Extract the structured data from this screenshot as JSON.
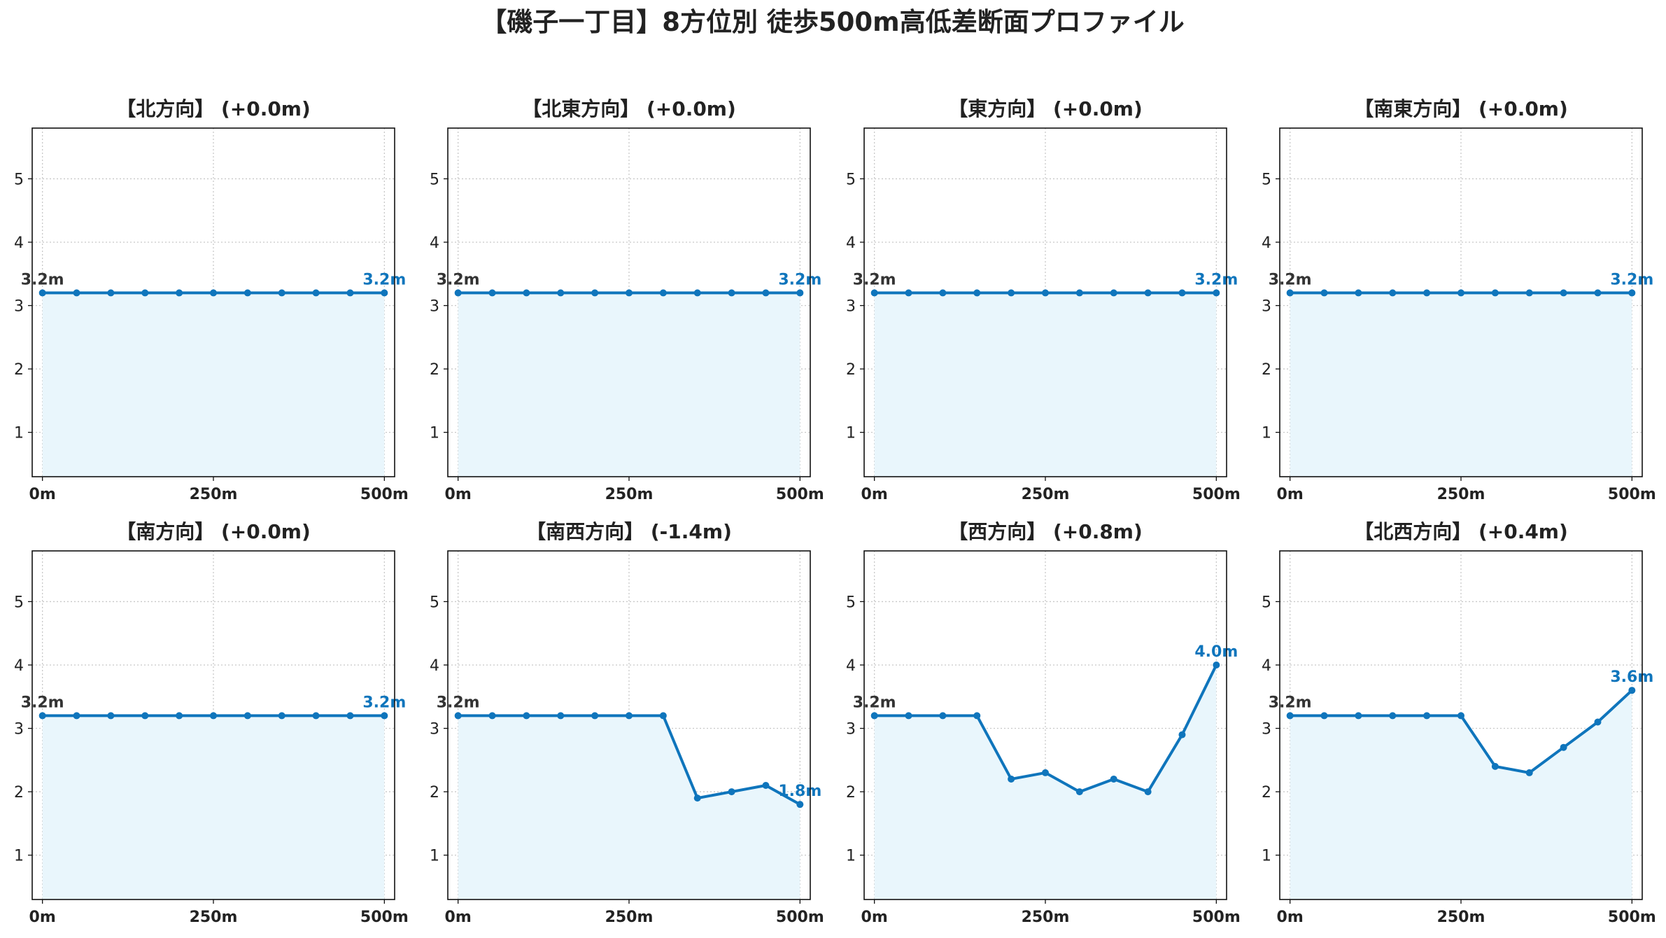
{
  "title": "【磯子一丁目】8方位別 徒歩500m高低差断面プロファイル",
  "colors": {
    "line": "#0f75bc",
    "fill": "#e9f6fc",
    "grid": "#c8c8c8"
  },
  "chart_data": [
    {
      "type": "area",
      "title": "【北方向】 (+0.0m)",
      "x": [
        0,
        50,
        100,
        150,
        200,
        250,
        300,
        350,
        400,
        450,
        500
      ],
      "values": [
        3.2,
        3.2,
        3.2,
        3.2,
        3.2,
        3.2,
        3.2,
        3.2,
        3.2,
        3.2,
        3.2
      ],
      "start_label": "3.2m",
      "end_label": "3.2m",
      "xticks": [
        "0m",
        "250m",
        "500m"
      ],
      "xtick_values": [
        0,
        250,
        500
      ],
      "yticks": [
        1,
        2,
        3,
        4,
        5
      ],
      "xlim": [
        -15,
        515
      ],
      "ylim": [
        0.3,
        5.8
      ],
      "grid": true
    },
    {
      "type": "area",
      "title": "【北東方向】 (+0.0m)",
      "x": [
        0,
        50,
        100,
        150,
        200,
        250,
        300,
        350,
        400,
        450,
        500
      ],
      "values": [
        3.2,
        3.2,
        3.2,
        3.2,
        3.2,
        3.2,
        3.2,
        3.2,
        3.2,
        3.2,
        3.2
      ],
      "start_label": "3.2m",
      "end_label": "3.2m",
      "xticks": [
        "0m",
        "250m",
        "500m"
      ],
      "xtick_values": [
        0,
        250,
        500
      ],
      "yticks": [
        1,
        2,
        3,
        4,
        5
      ],
      "xlim": [
        -15,
        515
      ],
      "ylim": [
        0.3,
        5.8
      ],
      "grid": true
    },
    {
      "type": "area",
      "title": "【東方向】 (+0.0m)",
      "x": [
        0,
        50,
        100,
        150,
        200,
        250,
        300,
        350,
        400,
        450,
        500
      ],
      "values": [
        3.2,
        3.2,
        3.2,
        3.2,
        3.2,
        3.2,
        3.2,
        3.2,
        3.2,
        3.2,
        3.2
      ],
      "start_label": "3.2m",
      "end_label": "3.2m",
      "xticks": [
        "0m",
        "250m",
        "500m"
      ],
      "xtick_values": [
        0,
        250,
        500
      ],
      "yticks": [
        1,
        2,
        3,
        4,
        5
      ],
      "xlim": [
        -15,
        515
      ],
      "ylim": [
        0.3,
        5.8
      ],
      "grid": true
    },
    {
      "type": "area",
      "title": "【南東方向】 (+0.0m)",
      "x": [
        0,
        50,
        100,
        150,
        200,
        250,
        300,
        350,
        400,
        450,
        500
      ],
      "values": [
        3.2,
        3.2,
        3.2,
        3.2,
        3.2,
        3.2,
        3.2,
        3.2,
        3.2,
        3.2,
        3.2
      ],
      "start_label": "3.2m",
      "end_label": "3.2m",
      "xticks": [
        "0m",
        "250m",
        "500m"
      ],
      "xtick_values": [
        0,
        250,
        500
      ],
      "yticks": [
        1,
        2,
        3,
        4,
        5
      ],
      "xlim": [
        -15,
        515
      ],
      "ylim": [
        0.3,
        5.8
      ],
      "grid": true
    },
    {
      "type": "area",
      "title": "【南方向】 (+0.0m)",
      "x": [
        0,
        50,
        100,
        150,
        200,
        250,
        300,
        350,
        400,
        450,
        500
      ],
      "values": [
        3.2,
        3.2,
        3.2,
        3.2,
        3.2,
        3.2,
        3.2,
        3.2,
        3.2,
        3.2,
        3.2
      ],
      "start_label": "3.2m",
      "end_label": "3.2m",
      "xticks": [
        "0m",
        "250m",
        "500m"
      ],
      "xtick_values": [
        0,
        250,
        500
      ],
      "yticks": [
        1,
        2,
        3,
        4,
        5
      ],
      "xlim": [
        -15,
        515
      ],
      "ylim": [
        0.3,
        5.8
      ],
      "grid": true
    },
    {
      "type": "area",
      "title": "【南西方向】 (-1.4m)",
      "x": [
        0,
        50,
        100,
        150,
        200,
        250,
        300,
        350,
        400,
        450,
        500
      ],
      "values": [
        3.2,
        3.2,
        3.2,
        3.2,
        3.2,
        3.2,
        3.2,
        1.9,
        2.0,
        2.1,
        1.8
      ],
      "start_label": "3.2m",
      "end_label": "1.8m",
      "xticks": [
        "0m",
        "250m",
        "500m"
      ],
      "xtick_values": [
        0,
        250,
        500
      ],
      "yticks": [
        1,
        2,
        3,
        4,
        5
      ],
      "xlim": [
        -15,
        515
      ],
      "ylim": [
        0.3,
        5.8
      ],
      "grid": true
    },
    {
      "type": "area",
      "title": "【西方向】 (+0.8m)",
      "x": [
        0,
        50,
        100,
        150,
        200,
        250,
        300,
        350,
        400,
        450,
        500
      ],
      "values": [
        3.2,
        3.2,
        3.2,
        3.2,
        2.2,
        2.3,
        2.0,
        2.2,
        2.0,
        2.9,
        4.0
      ],
      "start_label": "3.2m",
      "end_label": "4.0m",
      "xticks": [
        "0m",
        "250m",
        "500m"
      ],
      "xtick_values": [
        0,
        250,
        500
      ],
      "yticks": [
        1,
        2,
        3,
        4,
        5
      ],
      "xlim": [
        -15,
        515
      ],
      "ylim": [
        0.3,
        5.8
      ],
      "grid": true
    },
    {
      "type": "area",
      "title": "【北西方向】 (+0.4m)",
      "x": [
        0,
        50,
        100,
        150,
        200,
        250,
        300,
        350,
        400,
        450,
        500
      ],
      "values": [
        3.2,
        3.2,
        3.2,
        3.2,
        3.2,
        3.2,
        2.4,
        2.3,
        2.7,
        3.1,
        3.6
      ],
      "start_label": "3.2m",
      "end_label": "3.6m",
      "xticks": [
        "0m",
        "250m",
        "500m"
      ],
      "xtick_values": [
        0,
        250,
        500
      ],
      "yticks": [
        1,
        2,
        3,
        4,
        5
      ],
      "xlim": [
        -15,
        515
      ],
      "ylim": [
        0.3,
        5.8
      ],
      "grid": true
    }
  ]
}
